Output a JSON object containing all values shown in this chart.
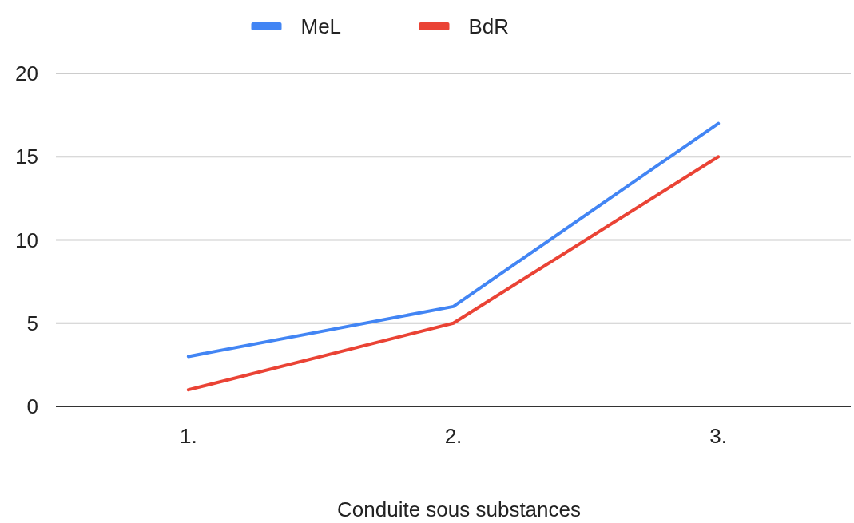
{
  "chart_data": {
    "type": "line",
    "xlabel": "Conduite sous substances",
    "categories": [
      "1.",
      "2.",
      "3."
    ],
    "series": [
      {
        "name": "MeL",
        "color": "#4285f4",
        "values": [
          3,
          6,
          17
        ]
      },
      {
        "name": "BdR",
        "color": "#ea4335",
        "values": [
          1,
          5,
          15
        ]
      }
    ],
    "ylim": [
      0,
      20
    ],
    "yticks": [
      0,
      5,
      10,
      15,
      20
    ],
    "grid": "y",
    "legend": "top",
    "marker": "none",
    "line_style": "solid"
  }
}
